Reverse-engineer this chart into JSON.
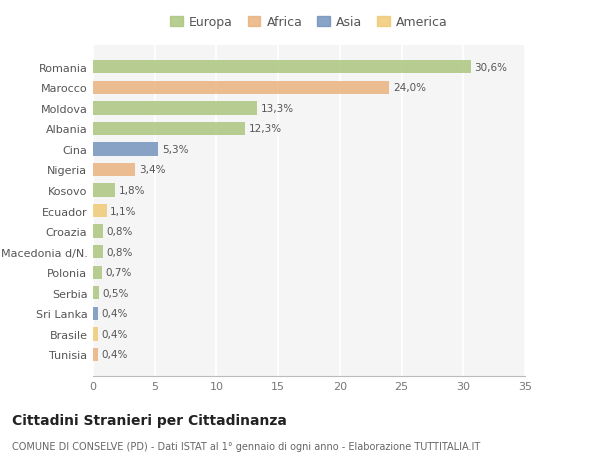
{
  "categories": [
    "Romania",
    "Marocco",
    "Moldova",
    "Albania",
    "Cina",
    "Nigeria",
    "Kosovo",
    "Ecuador",
    "Croazia",
    "Macedonia d/N.",
    "Polonia",
    "Serbia",
    "Sri Lanka",
    "Brasile",
    "Tunisia"
  ],
  "values": [
    30.6,
    24.0,
    13.3,
    12.3,
    5.3,
    3.4,
    1.8,
    1.1,
    0.8,
    0.8,
    0.7,
    0.5,
    0.4,
    0.4,
    0.4
  ],
  "labels": [
    "30,6%",
    "24,0%",
    "13,3%",
    "12,3%",
    "5,3%",
    "3,4%",
    "1,8%",
    "1,1%",
    "0,8%",
    "0,8%",
    "0,7%",
    "0,5%",
    "0,4%",
    "0,4%",
    "0,4%"
  ],
  "bar_colors": [
    "#a8c47a",
    "#e8b07a",
    "#a8c47a",
    "#a8c47a",
    "#7090bb",
    "#e8b07a",
    "#a8c47a",
    "#f0c870",
    "#a8c47a",
    "#a8c47a",
    "#a8c47a",
    "#a8c47a",
    "#7090bb",
    "#f0c870",
    "#e8b07a"
  ],
  "legend_labels": [
    "Europa",
    "Africa",
    "Asia",
    "America"
  ],
  "legend_colors": [
    "#a8c47a",
    "#e8b07a",
    "#7090bb",
    "#f0c870"
  ],
  "xlim": [
    0,
    35
  ],
  "xticks": [
    0,
    5,
    10,
    15,
    20,
    25,
    30,
    35
  ],
  "title": "Cittadini Stranieri per Cittadinanza",
  "subtitle": "COMUNE DI CONSELVE (PD) - Dati ISTAT al 1° gennaio di ogni anno - Elaborazione TUTTITALIA.IT",
  "outer_bg": "#ffffff",
  "plot_bg": "#f5f5f5",
  "grid_color": "#ffffff",
  "bar_height": 0.65
}
